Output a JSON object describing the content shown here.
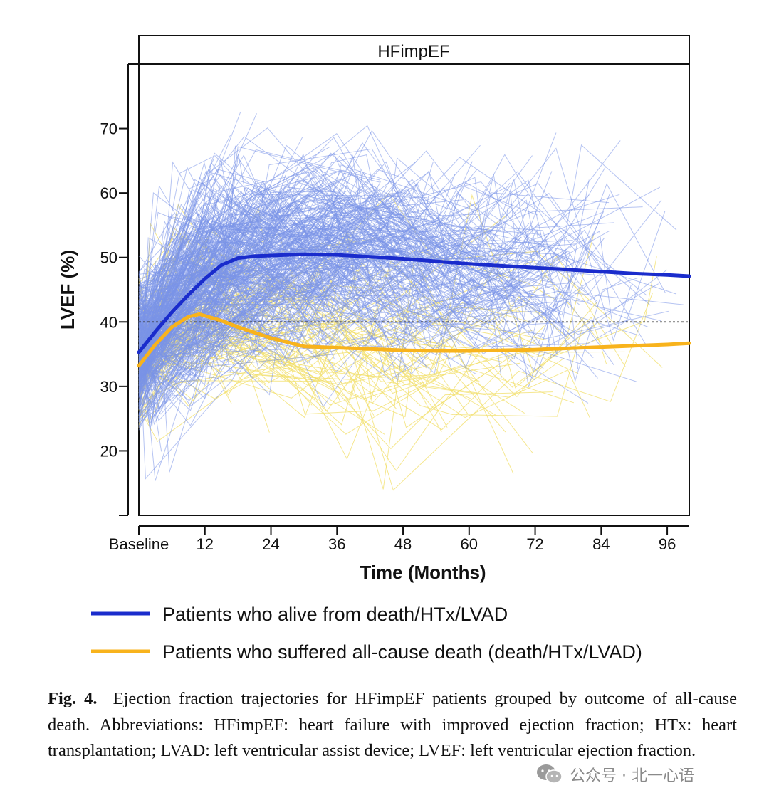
{
  "chart_data": {
    "type": "line",
    "panel_title": "HFimpEF",
    "xlabel": "Time (Months)",
    "ylabel": "LVEF (%)",
    "xlim": [
      0,
      100
    ],
    "ylim": [
      10,
      80
    ],
    "x_ticks": [
      {
        "value": 0,
        "label": "Baseline"
      },
      {
        "value": 12,
        "label": "12"
      },
      {
        "value": 24,
        "label": "24"
      },
      {
        "value": 36,
        "label": "36"
      },
      {
        "value": 48,
        "label": "48"
      },
      {
        "value": 60,
        "label": "60"
      },
      {
        "value": 72,
        "label": "72"
      },
      {
        "value": 84,
        "label": "84"
      },
      {
        "value": 96,
        "label": "96"
      }
    ],
    "y_ticks": [
      20,
      30,
      40,
      50,
      60,
      70
    ],
    "reference_line": {
      "y": 40,
      "style": "dotted",
      "color": "#333333"
    },
    "series": [
      {
        "name": "Patients who alive from death/HTx/LVAD",
        "color": "#1a2ccc",
        "individual_color": "#7a93e8",
        "x": [
          0,
          3,
          6,
          9,
          12,
          15,
          18,
          21,
          24,
          30,
          36,
          42,
          48,
          54,
          60,
          66,
          72,
          78,
          84,
          90,
          96,
          100
        ],
        "y": [
          35.3,
          38.5,
          41.5,
          44.2,
          46.7,
          48.8,
          49.9,
          50.2,
          50.3,
          50.5,
          50.4,
          50.1,
          49.8,
          49.4,
          49.0,
          48.7,
          48.4,
          48.1,
          47.8,
          47.5,
          47.3,
          47.1
        ]
      },
      {
        "name": "Patients who suffered all-cause death (death/HTx/LVAD)",
        "color": "#f8b31c",
        "individual_color": "#f2df6a",
        "x": [
          0,
          3,
          6,
          9,
          11,
          15,
          18,
          24,
          30,
          36,
          42,
          48,
          54,
          60,
          66,
          72,
          78,
          84,
          90,
          96,
          100
        ],
        "y": [
          33.2,
          36.5,
          39.2,
          40.8,
          41.2,
          40.2,
          39.2,
          37.5,
          36.2,
          36.0,
          35.8,
          35.6,
          35.5,
          35.5,
          35.6,
          35.7,
          35.9,
          36.1,
          36.3,
          36.5,
          36.7
        ]
      }
    ]
  },
  "caption": {
    "label": "Fig. 4.",
    "text": "Ejection fraction trajectories for HFimpEF patients grouped by outcome of all-cause death. Abbreviations: HFimpEF: heart failure with improved ejection fraction; HTx: heart transplantation; LVAD: left ventricular assist device; LVEF: left ventricular ejection fraction."
  },
  "watermark": {
    "text": "公众号 · 北一心语",
    "icon": "wechat-icon"
  }
}
